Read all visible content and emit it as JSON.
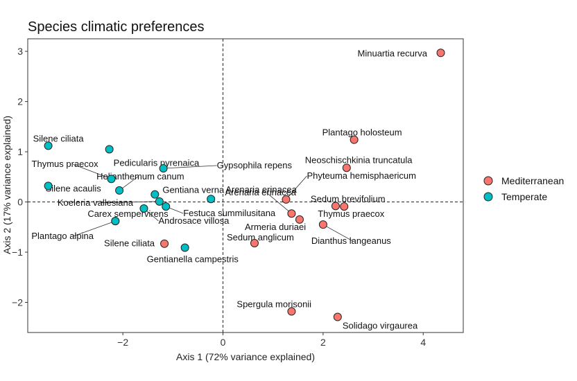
{
  "chart_data": {
    "type": "scatter",
    "title": "Species climatic preferences",
    "xlabel": "Axis 1 (72% variance explained)",
    "ylabel": "Axis 2 (17% variance explained)",
    "xlim": [
      -3.9,
      4.8
    ],
    "ylim": [
      -2.6,
      3.25
    ],
    "xticks": [
      -2,
      0,
      2,
      4
    ],
    "yticks": [
      -2,
      -1,
      0,
      1,
      2,
      3
    ],
    "grid": false,
    "reference_lines": [
      {
        "axis": "x",
        "value": 0,
        "style": "dashed"
      },
      {
        "axis": "y",
        "value": 0,
        "style": "dashed"
      }
    ],
    "legend": {
      "position": "right",
      "entries": [
        "Mediterranean",
        "Temperate"
      ]
    },
    "colors": {
      "Mediterranean": "#F8766D",
      "Temperate": "#00BFC4"
    },
    "series": [
      {
        "name": "Mediterranean",
        "points": [
          {
            "label": "Minuartia recurva",
            "x": 4.35,
            "y": 2.97
          },
          {
            "label": "Plantago holosteum",
            "x": 2.62,
            "y": 1.24
          },
          {
            "label": "Neoschischkinia truncatula",
            "x": 2.47,
            "y": 0.68
          },
          {
            "label": "Phyteuma hemisphaericum",
            "x": 1.26,
            "y": 0.05
          },
          {
            "label": "Sedum brevifolium",
            "x": 2.25,
            "y": -0.08
          },
          {
            "label": "Thymus praecox",
            "x": 2.42,
            "y": -0.09
          },
          {
            "label": "Arenaria erinacea",
            "x": 1.37,
            "y": -0.23
          },
          {
            "label": "Armeria duriaei",
            "x": 1.53,
            "y": -0.35
          },
          {
            "label": "Dianthus langeanus",
            "x": 2.0,
            "y": -0.45
          },
          {
            "label": "Sedum anglicum",
            "x": 0.63,
            "y": -0.82
          },
          {
            "label": "Silene ciliata",
            "x": -1.17,
            "y": -0.83
          },
          {
            "label": "Spergula morisonii",
            "x": 1.37,
            "y": -2.18
          },
          {
            "label": "Solidago virgaurea",
            "x": 2.29,
            "y": -2.29
          }
        ]
      },
      {
        "name": "Temperate",
        "points": [
          {
            "label": "Silene ciliata",
            "x": -3.49,
            "y": 1.12
          },
          {
            "label": "Pedicularis pyrenaica",
            "x": -2.27,
            "y": 1.05
          },
          {
            "label": "Gypsophila repens",
            "x": -1.19,
            "y": 0.67
          },
          {
            "label": "Thymus praecox",
            "x": -2.23,
            "y": 0.46
          },
          {
            "label": "Silene acaulis",
            "x": -3.49,
            "y": 0.32
          },
          {
            "label": "Helianthemum canum",
            "x": -2.07,
            "y": 0.23
          },
          {
            "label": "Gentiana verna",
            "x": -1.36,
            "y": 0.15
          },
          {
            "label": "Arenaria erinacea",
            "x": -0.24,
            "y": 0.06
          },
          {
            "label": "Koeleria vallesiana",
            "x": -1.27,
            "y": 0.01
          },
          {
            "label": "Festuca summilusitana",
            "x": -1.14,
            "y": -0.09
          },
          {
            "label": "Androsace villosa",
            "x": -1.58,
            "y": -0.13
          },
          {
            "label": "Carex sempervirens",
            "x": -2.15,
            "y": -0.38
          },
          {
            "label": "Plantago alpina",
            "x": -2.15,
            "y": -0.38
          },
          {
            "label": "Gentianella campestris",
            "x": -0.76,
            "y": -0.91
          }
        ]
      }
    ]
  }
}
